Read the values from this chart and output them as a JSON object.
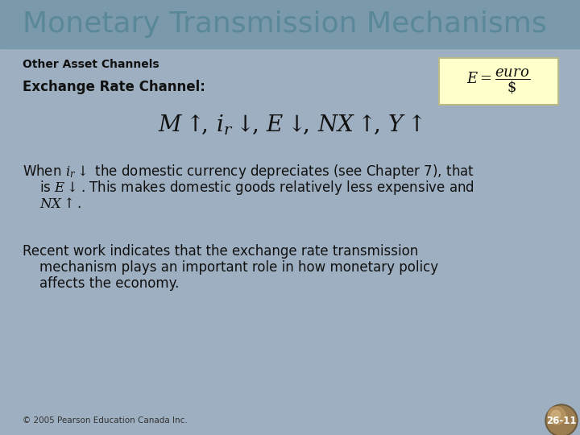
{
  "title": "Monetary Transmission Mechanisms",
  "subtitle": "Other Asset Channels",
  "exchange_label": "Exchange Rate Channel:",
  "footer": "© 2005 Pearson Education Canada Inc.",
  "page": "26-11",
  "bg_color": "#9dafc0",
  "title_bar_color": "#7a9aac",
  "title_color": "#5a8898",
  "text_color": "#111111",
  "formula_bg": "#ffffcc",
  "formula_border": "#bbbb88",
  "title_fontsize": 26,
  "subtitle_fontsize": 10,
  "exchange_fontsize": 12,
  "body_fontsize": 12,
  "equation_fontsize": 20,
  "footer_fontsize": 7.5
}
